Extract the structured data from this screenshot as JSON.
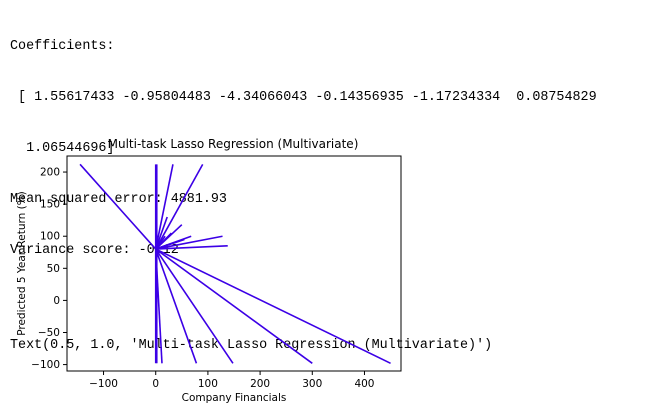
{
  "console": {
    "coef_header": "Coefficients:",
    "coef_line1": " [ 1.55617433 -0.95804483 -4.34066043 -0.14356935 -1.17234334  0.08754829",
    "coef_line2": "  1.06544696]",
    "mse": "Mean squared error: 4881.93",
    "variance": "Variance score: -0.12",
    "text_repr": "Text(0.5, 1.0, 'Multi-task Lasso Regression (Multivariate)')"
  },
  "chart_data": {
    "type": "line",
    "title": "Multi-task Lasso Regression (Multivariate)",
    "xlabel": "Company Financials",
    "ylabel": "Predicted 5 Year Return (%)",
    "xlim": [
      -170,
      470
    ],
    "ylim": [
      -110,
      225
    ],
    "xticks": [
      -100,
      0,
      100,
      200,
      300,
      400
    ],
    "yticks": [
      -100,
      -50,
      0,
      50,
      100,
      150,
      200
    ],
    "grid": false,
    "line_color": "#3c00e6",
    "segments": [
      [
        [
          -145,
          212
        ],
        [
          0,
          80
        ]
      ],
      [
        [
          0,
          212
        ],
        [
          0,
          -98
        ]
      ],
      [
        [
          2,
          212
        ],
        [
          2,
          -98
        ]
      ],
      [
        [
          0,
          80
        ],
        [
          33,
          212
        ]
      ],
      [
        [
          0,
          80
        ],
        [
          90,
          212
        ]
      ],
      [
        [
          0,
          80
        ],
        [
          450,
          -98
        ]
      ],
      [
        [
          0,
          80
        ],
        [
          300,
          -98
        ]
      ],
      [
        [
          0,
          80
        ],
        [
          148,
          -98
        ]
      ],
      [
        [
          0,
          80
        ],
        [
          78,
          -98
        ]
      ],
      [
        [
          0,
          80
        ],
        [
          12,
          -98
        ]
      ],
      [
        [
          0,
          80
        ],
        [
          22,
          130
        ]
      ],
      [
        [
          0,
          80
        ],
        [
          50,
          118
        ]
      ],
      [
        [
          0,
          80
        ],
        [
          30,
          105
        ]
      ],
      [
        [
          0,
          80
        ],
        [
          68,
          100
        ]
      ],
      [
        [
          0,
          80
        ],
        [
          128,
          100
        ]
      ],
      [
        [
          0,
          80
        ],
        [
          138,
          85
        ]
      ],
      [
        [
          0,
          80
        ],
        [
          35,
          90
        ]
      ],
      [
        [
          0,
          80
        ],
        [
          55,
          95
        ]
      ],
      [
        [
          0,
          80
        ],
        [
          18,
          100
        ]
      ]
    ]
  }
}
